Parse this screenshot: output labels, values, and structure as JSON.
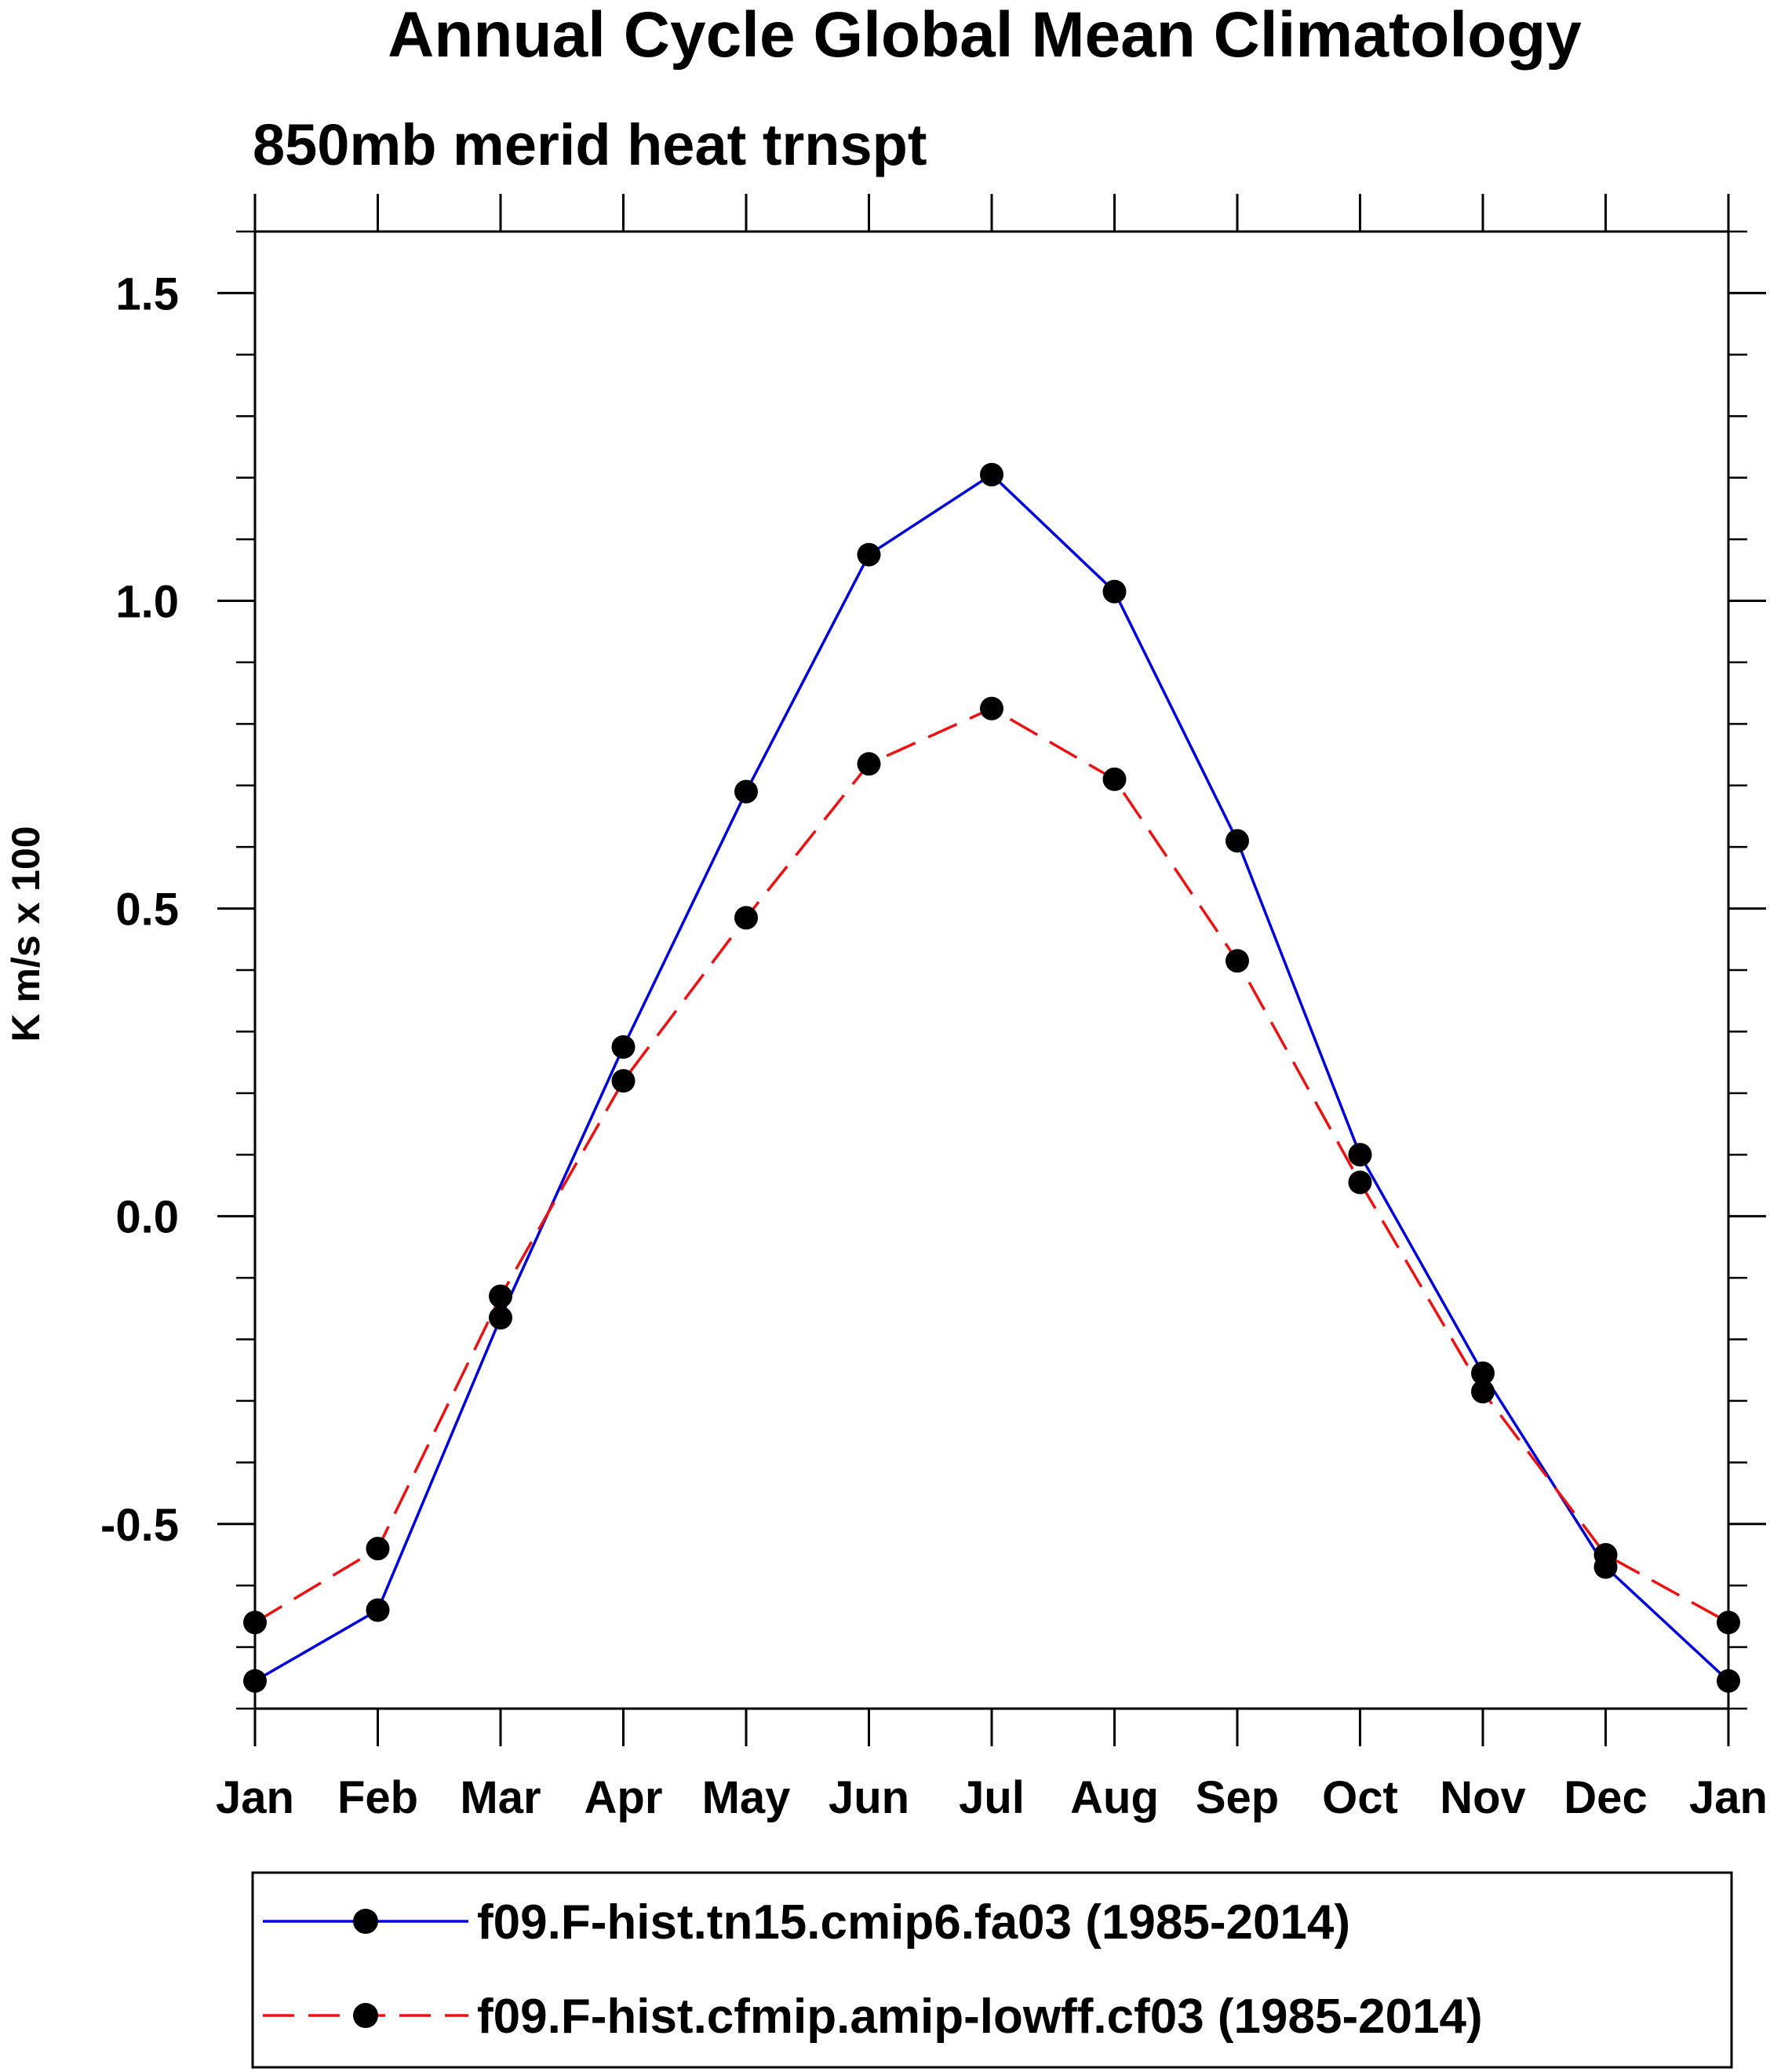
{
  "chart_data": {
    "type": "line",
    "title": "Annual Cycle Global Mean Climatology",
    "subtitle": "850mb merid heat trnspt",
    "xlabel": "",
    "ylabel": "K m/s x 100",
    "categories": [
      "Jan",
      "Feb",
      "Mar",
      "Apr",
      "May",
      "Jun",
      "Jul",
      "Aug",
      "Sep",
      "Oct",
      "Nov",
      "Dec",
      "Jan"
    ],
    "ylim": [
      -0.8,
      1.6
    ],
    "yticks": [
      -0.5,
      0.0,
      0.5,
      1.0,
      1.5
    ],
    "ytick_labels": [
      "-0.5",
      "0.0",
      "0.5",
      "1.0",
      "1.5"
    ],
    "grid": false,
    "legend_position": "bottom",
    "series": [
      {
        "name": "f09.F-hist.tn15.cmip6.fa03 (1985-2014)",
        "color": "#0000dd",
        "dash": "solid",
        "values": [
          -0.755,
          -0.64,
          -0.165,
          0.275,
          0.69,
          1.075,
          1.205,
          1.015,
          0.61,
          0.1,
          -0.255,
          -0.57,
          -0.755
        ]
      },
      {
        "name": "f09.F-hist.cfmip.amip-lowff.cf03 (1985-2014)",
        "color": "#ee1111",
        "dash": "dashed",
        "values": [
          -0.66,
          -0.54,
          -0.13,
          0.22,
          0.485,
          0.735,
          0.825,
          0.71,
          0.415,
          0.055,
          -0.285,
          -0.55,
          -0.66
        ]
      }
    ]
  }
}
